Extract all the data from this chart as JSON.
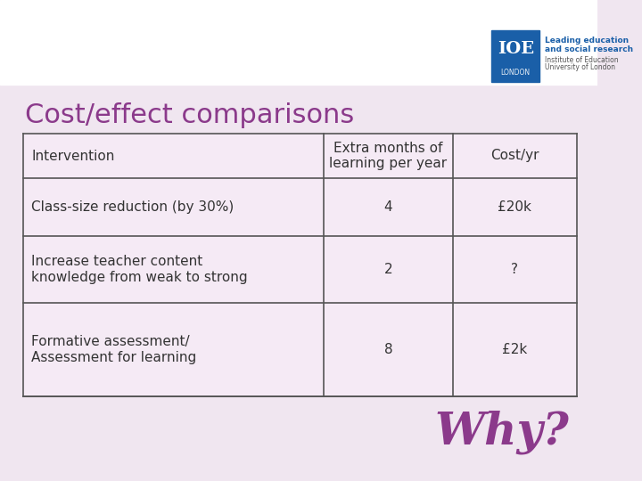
{
  "bg_color": "#f0e6f0",
  "white_header_color": "#ffffff",
  "title": "Cost/effect comparisons",
  "title_color": "#8b3a8b",
  "title_fontsize": 22,
  "table_bg": "#f5eaf5",
  "table_border_color": "#555555",
  "header_row": [
    "Intervention",
    "Extra months of\nlearning per year",
    "Cost/yr"
  ],
  "data_rows": [
    [
      "Class-size reduction (by 30%)",
      "4",
      "£20k"
    ],
    [
      "Increase teacher content\nknowledge from weak to strong",
      "2",
      "?"
    ],
    [
      "Formative assessment/\nAssessment for learning",
      "8",
      "£2k"
    ]
  ],
  "why_text": "Why?",
  "why_color": "#8b3a8b",
  "why_fontsize": 36,
  "logo_box_color": "#1a5fa8",
  "text_color": "#333333",
  "header_fontsize": 11,
  "cell_fontsize": 11
}
